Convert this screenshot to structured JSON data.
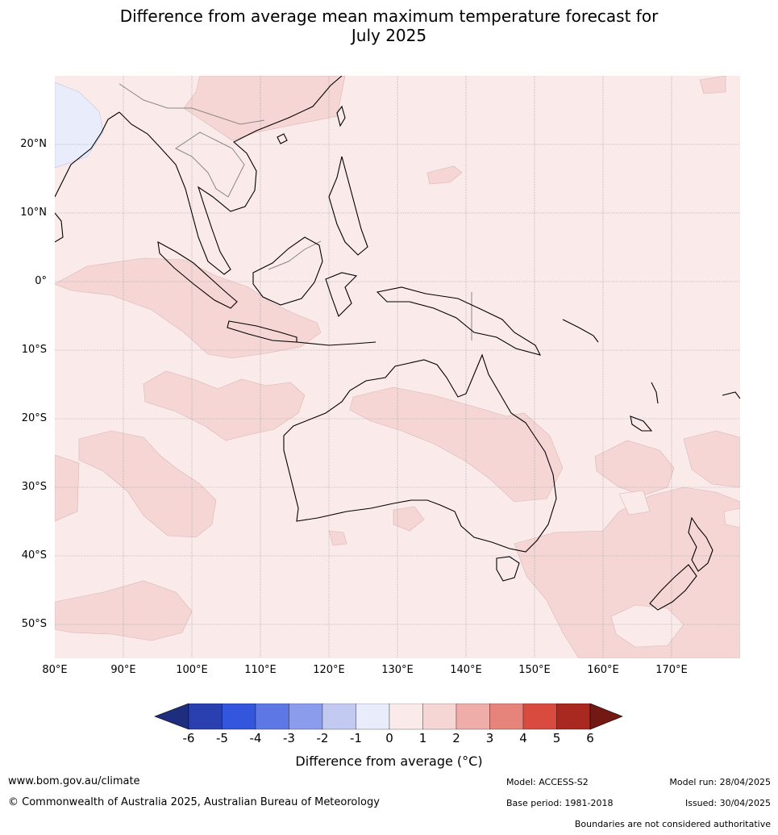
{
  "title_line1": "Difference from average mean maximum temperature forecast for",
  "title_line2": "July 2025",
  "lat_labels": [
    "20°N",
    "10°N",
    "0°",
    "10°S",
    "20°S",
    "30°S",
    "40°S",
    "50°S"
  ],
  "lon_labels": [
    "80°E",
    "90°E",
    "100°E",
    "110°E",
    "120°E",
    "130°E",
    "140°E",
    "150°E",
    "160°E",
    "170°E"
  ],
  "legend": {
    "ticks": [
      "-6",
      "-5",
      "-4",
      "-3",
      "-2",
      "-1",
      "0",
      "1",
      "2",
      "3",
      "4",
      "5",
      "6"
    ],
    "colors": [
      "#1f2d7e",
      "#2a3fb0",
      "#3456dc",
      "#5d78e4",
      "#8a9ceb",
      "#c2caf2",
      "#e8ecfb",
      "#fbeaea",
      "#f5d6d4",
      "#eeada8",
      "#e6837b",
      "#d94a3f",
      "#a9281f",
      "#741814"
    ],
    "title": "Difference from average (°C)"
  },
  "map_colors": {
    "background_0_to_1": "#fbeaea",
    "band_1_to_2": "#f5d6d4",
    "band_m1_to_0": "#e8ecfb",
    "land_outline": "#000000",
    "border": "#888888",
    "grid": "#999999"
  },
  "footer": {
    "website": "www.bom.gov.au/climate",
    "copyright": "© Commonwealth of Australia 2025, Australian Bureau of Meteorology",
    "model": "Model: ACCESS-S2",
    "base_period": "Base period: 1981-2018",
    "model_run": "Model run: 28/04/2025",
    "issued": "Issued: 30/04/2025",
    "disclaimer": "Boundaries are not considered authoritative"
  }
}
